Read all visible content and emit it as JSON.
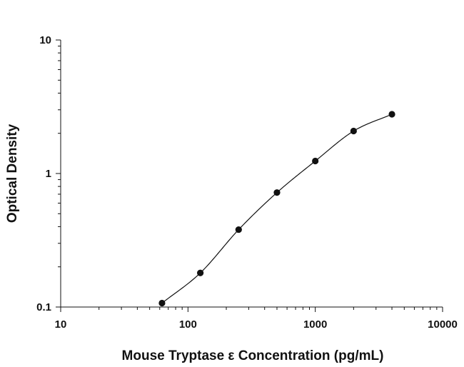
{
  "chart_data": {
    "type": "scatter",
    "title": "",
    "xlabel": "Mouse Tryptase ε Concentration (pg/mL)",
    "ylabel": "Optical Density",
    "x_scale": "log",
    "y_scale": "log",
    "xlim": [
      10,
      10000
    ],
    "ylim": [
      0.1,
      10
    ],
    "x_ticks": [
      "10",
      "100",
      "1000",
      "10000"
    ],
    "y_ticks": [
      "0.1",
      "1",
      "10"
    ],
    "grid": false,
    "legend": "none",
    "series": [
      {
        "x": [
          62.5,
          125,
          250,
          500,
          1000,
          2000,
          4000
        ],
        "y": [
          0.107,
          0.18,
          0.38,
          0.72,
          1.24,
          2.08,
          2.78
        ],
        "fit": "4PL curve"
      }
    ]
  }
}
